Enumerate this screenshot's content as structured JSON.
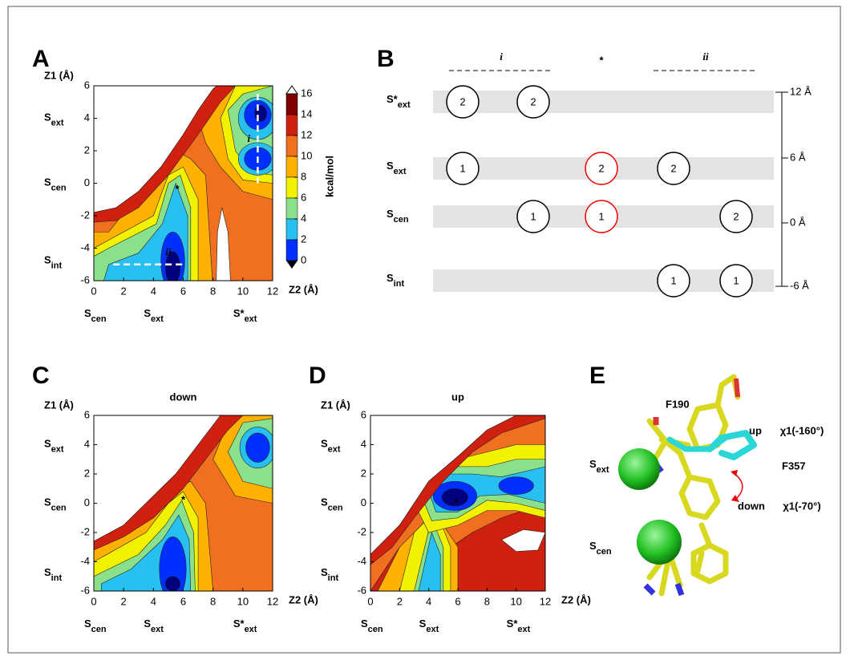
{
  "panels": {
    "A": {
      "label": "A",
      "y_axis_label": "Z1 (Å)",
      "x_axis_label": "Z2 (Å)",
      "yticks": [
        6,
        4,
        2,
        0,
        -2,
        -4,
        -6
      ],
      "xticks": [
        0,
        2,
        4,
        6,
        8,
        10,
        12
      ],
      "y_sites": [
        {
          "main": "S",
          "sub": "ext"
        },
        {
          "main": "S",
          "sub": "cen"
        },
        {
          "main": "S",
          "sub": "int"
        }
      ],
      "x_sites": [
        {
          "main": "S",
          "sub": "cen"
        },
        {
          "main": "S",
          "sub": "ext"
        },
        {
          "main": "S*",
          "sub": "ext"
        }
      ],
      "colorbar": {
        "label": "kcal/mol",
        "ticks": [
          16,
          14,
          12,
          10,
          8,
          6,
          4,
          2,
          0
        ]
      },
      "annotations": [
        "i",
        "ii",
        "*"
      ]
    },
    "B": {
      "label": "B",
      "columns": [
        "i",
        "*",
        "ii"
      ],
      "rows": [
        {
          "main": "S*",
          "sub": "ext"
        },
        {
          "main": "S",
          "sub": "ext"
        },
        {
          "main": "S",
          "sub": "cen"
        },
        {
          "main": "S",
          "sub": "int"
        }
      ],
      "scale": [
        "12 Å",
        "6 Å",
        "0 Å",
        "-6 Å"
      ],
      "ions": [
        {
          "row": 0,
          "text": "2"
        },
        {
          "row": 0,
          "text": "2"
        },
        {
          "row": 1,
          "text": "1"
        },
        {
          "row": 1,
          "text": "2"
        },
        {
          "row": 1,
          "text": "2"
        },
        {
          "row": 2,
          "text": "1"
        },
        {
          "row": 2,
          "text": "1"
        },
        {
          "row": 2,
          "text": "2"
        },
        {
          "row": 3,
          "text": "1"
        },
        {
          "row": 3,
          "text": "1"
        }
      ]
    },
    "C": {
      "label": "C",
      "title": "down",
      "y_axis_label": "Z1 (Å)",
      "x_axis_label": "Z2 (Å)",
      "yticks": [
        6,
        4,
        2,
        0,
        -2,
        -4,
        -6
      ],
      "xticks": [
        0,
        2,
        4,
        6,
        8,
        10,
        12
      ],
      "y_sites": [
        {
          "main": "S",
          "sub": "ext"
        },
        {
          "main": "S",
          "sub": "cen"
        },
        {
          "main": "S",
          "sub": "int"
        }
      ],
      "x_sites": [
        {
          "main": "S",
          "sub": "cen"
        },
        {
          "main": "S",
          "sub": "ext"
        },
        {
          "main": "S*",
          "sub": "ext"
        }
      ],
      "annotations": [
        "*"
      ]
    },
    "D": {
      "label": "D",
      "title": "up",
      "y_axis_label": "Z1 (Å)",
      "x_axis_label": "Z2 (Å)",
      "yticks": [
        6,
        4,
        2,
        0,
        -2,
        -4,
        -6
      ],
      "xticks": [
        0,
        2,
        4,
        6,
        8,
        10,
        12
      ],
      "y_sites": [
        {
          "main": "S",
          "sub": "ext"
        },
        {
          "main": "S",
          "sub": "cen"
        },
        {
          "main": "S",
          "sub": "int"
        }
      ],
      "x_sites": [
        {
          "main": "S",
          "sub": "cen"
        },
        {
          "main": "S",
          "sub": "ext"
        },
        {
          "main": "S*",
          "sub": "ext"
        }
      ],
      "annotations": [
        "*"
      ]
    },
    "E": {
      "label": "E",
      "residue_top": "F190",
      "residue_mid": "F357",
      "up_label": "up",
      "up_angle": "χ1(-160°)",
      "down_label": "down",
      "down_angle": "χ1(-70°)",
      "sites": [
        {
          "main": "S",
          "sub": "ext"
        },
        {
          "main": "S",
          "sub": "cen"
        }
      ]
    }
  }
}
